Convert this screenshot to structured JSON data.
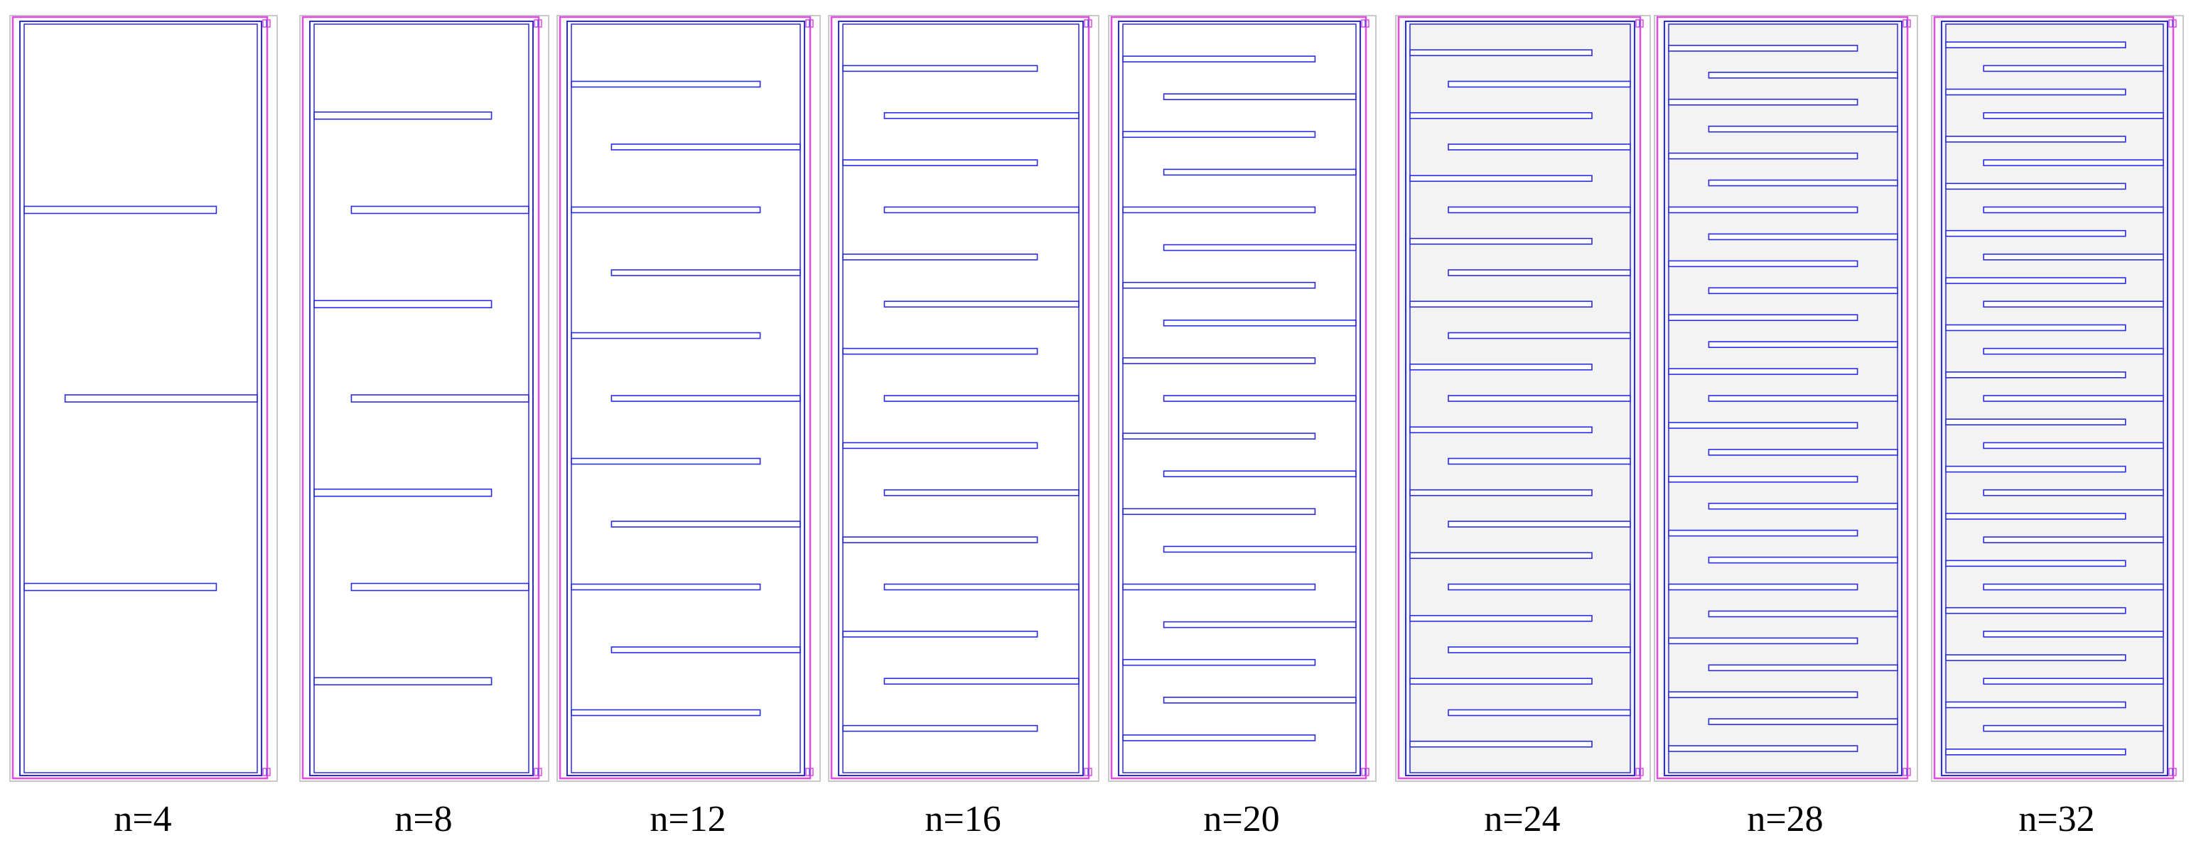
{
  "colors": {
    "outline": "#e14be0",
    "trace": "#2b2be6",
    "frame": "#c9c9c9",
    "fill": "#f3f3f3"
  },
  "panels": [
    {
      "label": "n=4",
      "n": 4,
      "shaded": false
    },
    {
      "label": "n=8",
      "n": 8,
      "shaded": false
    },
    {
      "label": "n=12",
      "n": 12,
      "shaded": false
    },
    {
      "label": "n=16",
      "n": 16,
      "shaded": false
    },
    {
      "label": "n=20",
      "n": 20,
      "shaded": false
    },
    {
      "label": "n=24",
      "n": 24,
      "shaded": true
    },
    {
      "label": "n=28",
      "n": 28,
      "shaded": true
    },
    {
      "label": "n=32",
      "n": 32,
      "shaded": true
    }
  ]
}
